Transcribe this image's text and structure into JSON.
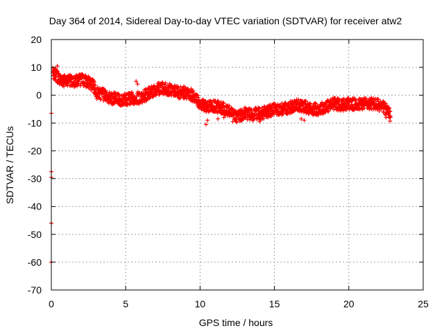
{
  "chart_data": {
    "type": "scatter",
    "title": "Day 364 of 2014, Sidereal Day-to-day VTEC variation (SDTVAR) for receiver atw2",
    "xlabel": "GPS time / hours",
    "ylabel": "SDTVAR / TECUs",
    "xlim": [
      0,
      25
    ],
    "ylim": [
      -70,
      20
    ],
    "xticks": [
      0,
      5,
      10,
      15,
      20,
      25
    ],
    "yticks": [
      -70,
      -60,
      -50,
      -40,
      -30,
      -20,
      -10,
      0,
      10,
      20
    ],
    "xtick_labels": [
      "0",
      "5",
      "10",
      "15",
      "20",
      "25"
    ],
    "ytick_labels": [
      "-70",
      "-60",
      "-50",
      "-40",
      "-30",
      "-20",
      "-10",
      "0",
      "10",
      "20"
    ],
    "grid": true,
    "marker": "+",
    "color": "#ff0000",
    "series": [
      {
        "name": "atw2",
        "trend": [
          [
            0.1,
            8.0
          ],
          [
            0.3,
            7.5
          ],
          [
            0.5,
            6.0
          ],
          [
            0.8,
            5.0
          ],
          [
            1.2,
            5.5
          ],
          [
            1.6,
            5.0
          ],
          [
            2.0,
            5.5
          ],
          [
            2.4,
            5.0
          ],
          [
            2.8,
            3.5
          ],
          [
            3.0,
            1.0
          ],
          [
            3.3,
            0.5
          ],
          [
            3.6,
            0.0
          ],
          [
            4.0,
            -1.0
          ],
          [
            4.5,
            -1.5
          ],
          [
            5.0,
            -1.5
          ],
          [
            5.5,
            -1.0
          ],
          [
            6.0,
            -1.0
          ],
          [
            6.5,
            0.5
          ],
          [
            7.0,
            2.0
          ],
          [
            7.5,
            2.5
          ],
          [
            8.0,
            2.0
          ],
          [
            8.5,
            1.0
          ],
          [
            9.0,
            1.0
          ],
          [
            9.5,
            0.0
          ],
          [
            10.0,
            -3.0
          ],
          [
            10.5,
            -4.0
          ],
          [
            11.0,
            -4.0
          ],
          [
            11.5,
            -4.5
          ],
          [
            12.0,
            -6.0
          ],
          [
            12.5,
            -8.0
          ],
          [
            13.0,
            -6.5
          ],
          [
            13.5,
            -7.0
          ],
          [
            14.0,
            -6.5
          ],
          [
            14.5,
            -6.0
          ],
          [
            15.0,
            -5.0
          ],
          [
            15.5,
            -5.0
          ],
          [
            16.0,
            -4.5
          ],
          [
            16.5,
            -3.5
          ],
          [
            17.0,
            -4.0
          ],
          [
            17.5,
            -5.0
          ],
          [
            18.0,
            -5.0
          ],
          [
            18.5,
            -4.0
          ],
          [
            19.0,
            -3.0
          ],
          [
            19.5,
            -3.5
          ],
          [
            20.0,
            -3.0
          ],
          [
            20.5,
            -3.5
          ],
          [
            21.0,
            -3.0
          ],
          [
            21.5,
            -3.0
          ],
          [
            22.0,
            -3.5
          ],
          [
            22.5,
            -5.0
          ],
          [
            22.8,
            -7.5
          ]
        ],
        "band": 2.2,
        "outliers": [
          [
            0.0,
            -6.5
          ],
          [
            0.0,
            -27.5
          ],
          [
            0.0,
            -29.5
          ],
          [
            0.0,
            -46.0
          ],
          [
            0.0,
            -60.0
          ],
          [
            0.4,
            10.5
          ],
          [
            0.3,
            9.5
          ],
          [
            5.7,
            5.0
          ],
          [
            5.8,
            4.0
          ],
          [
            10.4,
            -10.5
          ],
          [
            10.5,
            -9.0
          ],
          [
            11.2,
            -8.5
          ],
          [
            11.6,
            -8.0
          ],
          [
            12.2,
            -9.5
          ],
          [
            12.8,
            -9.0
          ],
          [
            14.0,
            -9.5
          ],
          [
            16.8,
            -8.5
          ],
          [
            17.0,
            -9.0
          ],
          [
            22.5,
            -8.0
          ],
          [
            8.7,
            3.0
          ],
          [
            11.3,
            -3.5
          ],
          [
            11.4,
            -2.5
          ]
        ]
      }
    ]
  }
}
